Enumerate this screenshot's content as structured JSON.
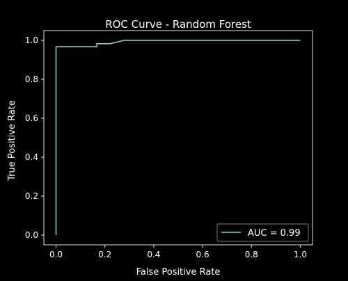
{
  "colors": {
    "background": "#000000",
    "foreground": "#ffffff",
    "line": "#8dd3c7",
    "legend_edge": "#808080"
  },
  "chart_data": {
    "type": "line",
    "title": "ROC Curve - Random Forest",
    "xlabel": "False Positive Rate",
    "ylabel": "True Positive Rate",
    "xlim": [
      -0.05,
      1.05
    ],
    "ylim": [
      -0.05,
      1.05
    ],
    "xticks": [
      0.0,
      0.2,
      0.4,
      0.6,
      0.8,
      1.0
    ],
    "xtick_labels": [
      "0.0",
      "0.2",
      "0.4",
      "0.6",
      "0.8",
      "1.0"
    ],
    "yticks": [
      0.0,
      0.2,
      0.4,
      0.6,
      0.8,
      1.0
    ],
    "ytick_labels": [
      "0.0",
      "0.2",
      "0.4",
      "0.6",
      "0.8",
      "1.0"
    ],
    "grid": false,
    "legend_position": "lower-right",
    "series": [
      {
        "name": "AUC = 0.99",
        "x": [
          0.0,
          0.0,
          0.0,
          0.167,
          0.167,
          0.222,
          0.278,
          1.0
        ],
        "y": [
          0.0,
          0.0167,
          0.967,
          0.967,
          0.983,
          0.983,
          1.0,
          1.0
        ]
      }
    ]
  }
}
